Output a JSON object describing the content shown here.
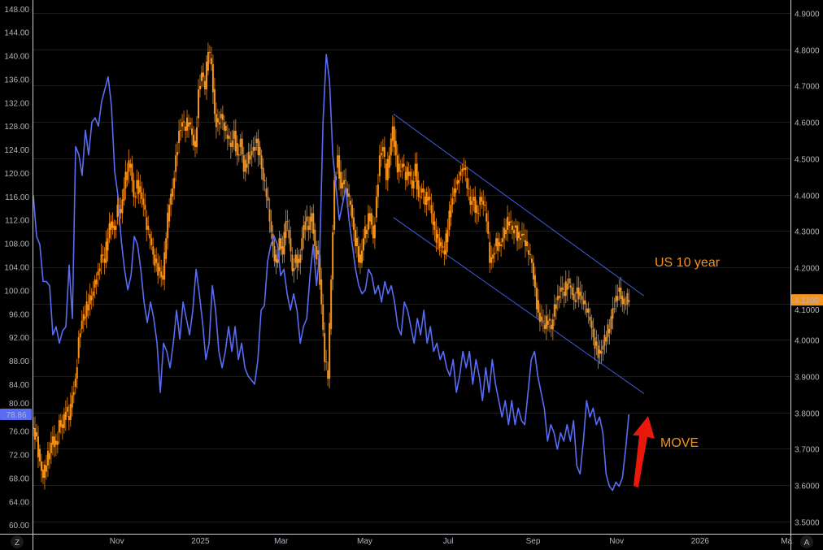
{
  "chart_data": {
    "type": "line",
    "title": "",
    "colors": {
      "background": "#000000",
      "grid": "#1c1c1c",
      "axis_text": "#b2b5be",
      "move": "#5a6cf2",
      "us10y": "#f7931a",
      "arrow": "#e8190c"
    },
    "x_axis": {
      "range": [
        "2024-09-01",
        "2026-03-08"
      ],
      "ticks": [
        {
          "label": "Nov",
          "date": "2024-11-01"
        },
        {
          "label": "2025",
          "date": "2025-01-01"
        },
        {
          "label": "Mar",
          "date": "2025-03-01"
        },
        {
          "label": "May",
          "date": "2025-05-01"
        },
        {
          "label": "Jul",
          "date": "2025-07-01"
        },
        {
          "label": "Sep",
          "date": "2025-09-01"
        },
        {
          "label": "Nov",
          "date": "2025-11-01"
        },
        {
          "label": "2026",
          "date": "2026-01-01"
        },
        {
          "label": "Ma",
          "date": "2026-03-01"
        }
      ]
    },
    "left_axis": {
      "range": [
        58.5,
        149.5
      ],
      "ticks": [
        "148.00",
        "144.00",
        "140.00",
        "136.00",
        "132.00",
        "128.00",
        "124.00",
        "120.00",
        "116.00",
        "112.00",
        "108.00",
        "104.00",
        "100.00",
        "96.00",
        "92.00",
        "88.00",
        "84.00",
        "80.00",
        "76.00",
        "72.00",
        "68.00",
        "64.00",
        "60.00"
      ],
      "last_value_tag": "78.86",
      "corner_button": "Z"
    },
    "right_axis": {
      "range": [
        3.466,
        4.936
      ],
      "ticks": [
        "4.9000",
        "4.8000",
        "4.7000",
        "4.6000",
        "4.5000",
        "4.4000",
        "4.3000",
        "4.2000",
        "4.1000",
        "4.0000",
        "3.9000",
        "3.8000",
        "3.7000",
        "3.6000",
        "3.5000"
      ],
      "last_value_tag": "4.1100",
      "corner_button": "A"
    },
    "series": [
      {
        "name": "MOVE",
        "axis": "left",
        "style": "line",
        "x_start": "2024-09-01",
        "x_end": "2025-11-10",
        "values": [
          116.2,
          109.2,
          107.8,
          101.5,
          101.5,
          100.8,
          92.4,
          93.8,
          91,
          93.1,
          93.8,
          104.3,
          95.2,
          124.5,
          123.1,
          119.6,
          127.3,
          123.1,
          128.7,
          129.4,
          128,
          132.2,
          134.3,
          136.4,
          131.5,
          120.3,
          116.2,
          108.5,
          103.6,
          100.1,
          102.5,
          109.2,
          107.8,
          103.6,
          98,
          94.5,
          98,
          95.2,
          91,
          82.6,
          91,
          89.6,
          86.8,
          91,
          96.6,
          91.7,
          98,
          95.2,
          92.4,
          96.6,
          103.6,
          99.4,
          94.5,
          88.2,
          91,
          100.8,
          96.6,
          89.6,
          86.8,
          89.6,
          93.8,
          89.6,
          93.8,
          88.2,
          91,
          86.8,
          85.4,
          84.7,
          84,
          88.2,
          96.6,
          97.4,
          105,
          107.8,
          109.2,
          107.8,
          102.5,
          103.6,
          99.4,
          96.6,
          99.4,
          96.6,
          91,
          93.8,
          95.2,
          102.5,
          107.8,
          100.8,
          106.4,
          128.7,
          140.2,
          135.7,
          123.1,
          117.5,
          112,
          114.7,
          117.5,
          112,
          107.8,
          103.6,
          100.8,
          99.4,
          100.1,
          103.6,
          102.5,
          99.4,
          100.8,
          98,
          101.5,
          99.4,
          100.8,
          98,
          93.8,
          92.4,
          98,
          96.6,
          93.8,
          91,
          95.2,
          92.4,
          96.6,
          91,
          93.8,
          89.6,
          91,
          88.2,
          89.6,
          86.8,
          85.4,
          88.2,
          82.6,
          85.4,
          89.6,
          86.8,
          89.6,
          84,
          88.2,
          85.4,
          81.2,
          86.8,
          82.6,
          88.2,
          84,
          81.2,
          78.4,
          81.2,
          77.1,
          81.2,
          77.1,
          79.9,
          77.8,
          77.1,
          82.6,
          88.2,
          89.6,
          85.4,
          82.6,
          79.9,
          74.3,
          77.1,
          75.7,
          72.9,
          75.7,
          74.3,
          77.1,
          74.3,
          77.8,
          70.1,
          68.7,
          74.3,
          81.2,
          78.4,
          79.9,
          77.1,
          78.4,
          75.7,
          68.7,
          66.6,
          65.9,
          67.3,
          66.6,
          68,
          72.9,
          78.86
        ],
        "label": "MOVE"
      },
      {
        "name": "US 10 year",
        "axis": "right",
        "style": "candles",
        "x_start": "2024-09-01",
        "x_end": "2025-11-10",
        "values": [
          3.757,
          3.734,
          3.665,
          3.62,
          3.654,
          3.688,
          3.734,
          3.711,
          3.779,
          3.757,
          3.802,
          3.779,
          3.848,
          3.893,
          4.007,
          4.053,
          4.064,
          4.098,
          4.121,
          4.166,
          4.189,
          4.235,
          4.212,
          4.28,
          4.326,
          4.303,
          4.372,
          4.349,
          4.417,
          4.463,
          4.485,
          4.394,
          4.44,
          4.406,
          4.372,
          4.303,
          4.28,
          4.235,
          4.212,
          4.189,
          4.166,
          4.28,
          4.372,
          4.417,
          4.508,
          4.576,
          4.599,
          4.576,
          4.599,
          4.565,
          4.531,
          4.69,
          4.736,
          4.69,
          4.793,
          4.759,
          4.622,
          4.599,
          4.622,
          4.576,
          4.554,
          4.531,
          4.576,
          4.508,
          4.554,
          4.463,
          4.485,
          4.508,
          4.531,
          4.554,
          4.508,
          4.44,
          4.394,
          4.326,
          4.258,
          4.212,
          4.28,
          4.235,
          4.326,
          4.28,
          4.189,
          4.235,
          4.212,
          4.28,
          4.326,
          4.303,
          4.349,
          4.258,
          4.235,
          4.098,
          3.939,
          3.893,
          4.166,
          4.44,
          4.508,
          4.417,
          4.44,
          4.394,
          4.372,
          4.303,
          4.258,
          4.212,
          4.28,
          4.303,
          4.349,
          4.28,
          4.394,
          4.508,
          4.531,
          4.44,
          4.508,
          4.588,
          4.508,
          4.463,
          4.485,
          4.44,
          4.463,
          4.417,
          4.485,
          4.394,
          4.417,
          4.372,
          4.394,
          4.349,
          4.303,
          4.28,
          4.258,
          4.235,
          4.303,
          4.372,
          4.417,
          4.44,
          4.463,
          4.474,
          4.417,
          4.372,
          4.394,
          4.349,
          4.394,
          4.372,
          4.326,
          4.212,
          4.235,
          4.28,
          4.258,
          4.28,
          4.303,
          4.326,
          4.303,
          4.315,
          4.28,
          4.292,
          4.258,
          4.235,
          4.212,
          4.144,
          4.075,
          4.053,
          4.03,
          4.053,
          4.03,
          4.098,
          4.121,
          4.144,
          4.121,
          4.155,
          4.144,
          4.11,
          4.144,
          4.121,
          4.098,
          4.075,
          4.053,
          4.007,
          3.984,
          3.962,
          3.984,
          4.007,
          4.03,
          4.087,
          4.121,
          4.144,
          4.098,
          4.098,
          4.11
        ],
        "label": "US 10 year"
      }
    ],
    "trend_channel": [
      {
        "name": "upper",
        "from": {
          "date": "2025-05-22",
          "value": 4.622
        },
        "to": {
          "date": "2025-11-21",
          "value": 4.121
        }
      },
      {
        "name": "lower",
        "from": {
          "date": "2025-05-22",
          "value": 4.337
        },
        "to": {
          "date": "2025-11-21",
          "value": 3.852
        }
      }
    ],
    "annotations": {
      "us10y_label": "US 10 year",
      "move_label": "MOVE"
    }
  }
}
